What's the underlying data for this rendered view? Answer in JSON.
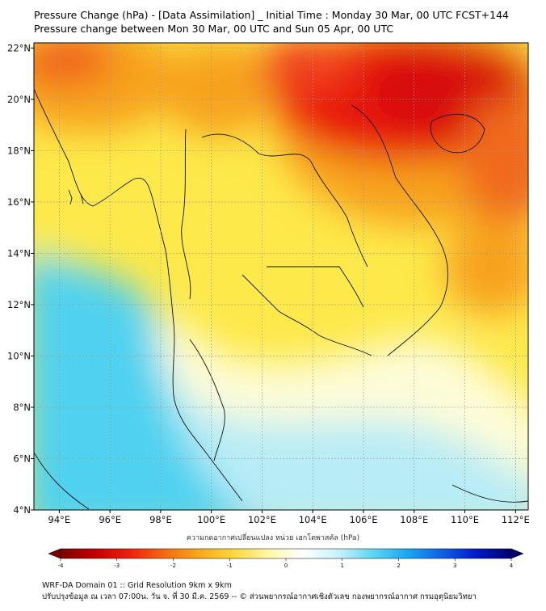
{
  "title": {
    "line1": "Pressure Change (hPa) - [Data Assimilation] _ Initial Time : Monday 30 Mar, 00 UTC FCST+144",
    "line2": "Pressure change between Mon 30 Mar, 00 UTC and Sun 05 Apr, 00 UTC"
  },
  "map": {
    "lon_ticks": [
      "94°E",
      "96°E",
      "98°E",
      "100°E",
      "102°E",
      "104°E",
      "106°E",
      "108°E",
      "110°E",
      "112°E"
    ],
    "lat_ticks": [
      "22°N",
      "20°N",
      "18°N",
      "16°N",
      "14°N",
      "12°N",
      "10°N",
      "8°N",
      "6°N",
      "4°N"
    ],
    "lon_values": [
      94,
      96,
      98,
      100,
      102,
      104,
      106,
      108,
      110,
      112
    ],
    "lat_values": [
      22,
      20,
      18,
      16,
      14,
      12,
      10,
      8,
      6,
      4
    ],
    "extent": {
      "lon_min": 93,
      "lon_max": 112.5,
      "lat_min": 4,
      "lat_max": 22.2
    },
    "grid": true,
    "colors": {
      "strong_fall": "#e8160c",
      "fall": "#f7a21a",
      "slight_fall": "#fde94a",
      "neutral": "#fdfcd8",
      "slight_rise": "#b8ecf6",
      "rise": "#4fd2f0"
    }
  },
  "colorbar": {
    "label": "ความกดอากาศเปลี่ยนแปลง หน่วย เฮกโตพาสคัล (hPa)",
    "ticks": [
      "-4",
      "-3",
      "-2",
      "-1",
      "0",
      "1",
      "2",
      "3",
      "4"
    ],
    "tick_values": [
      -4,
      -3,
      -2,
      -1,
      0,
      1,
      2,
      3,
      4
    ],
    "range": [
      -4,
      4
    ],
    "extend": "both",
    "stops": [
      "#7a0000",
      "#c40000",
      "#f02010",
      "#f56a10",
      "#f9a81a",
      "#fdd83a",
      "#fff7a8",
      "#ffffff",
      "#c8f2fb",
      "#5fd6f2",
      "#18a8f0",
      "#1060e8",
      "#0018c8",
      "#00006e"
    ]
  },
  "footer": {
    "line1": "WRF-DA Domain 01 :: Grid Resolution 9km x 9km",
    "line2": "ปรับปรุงข้อมูล ณ เวลา 07:00น. วัน จ. ที่ 30 มี.ค. 2569 -- © ส่วนพยากรณ์อากาศเชิงตัวเลข กองพยากรณ์อากาศ กรมอุตุนิยมวิทยา"
  }
}
